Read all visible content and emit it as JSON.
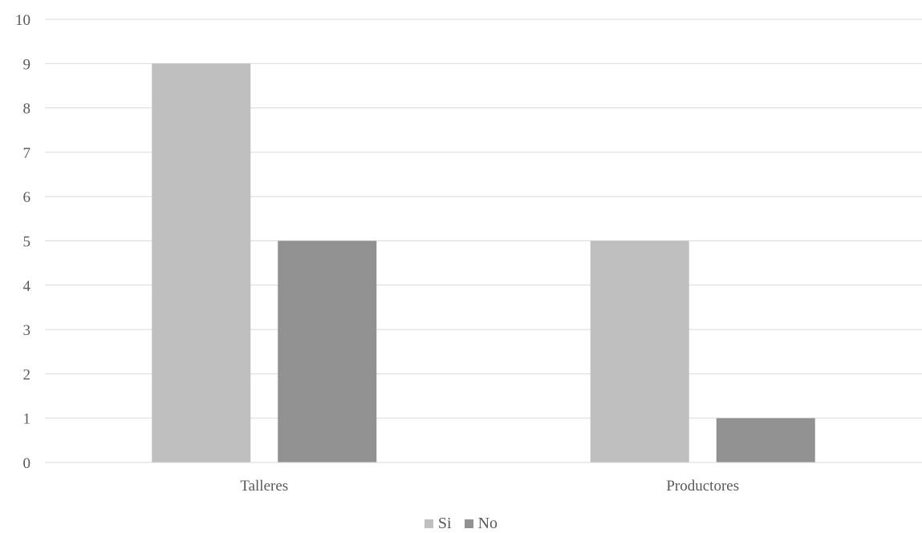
{
  "chart_data": {
    "type": "bar",
    "title": "",
    "xlabel": "",
    "ylabel": "",
    "categories": [
      "Talleres",
      "Productores"
    ],
    "series": [
      {
        "name": "Si",
        "values": [
          9,
          5
        ],
        "color": "#bfbfbf"
      },
      {
        "name": "No",
        "values": [
          5,
          1
        ],
        "color": "#919191"
      }
    ],
    "ylim": [
      0,
      10
    ],
    "yticks": [
      0,
      1,
      2,
      3,
      4,
      5,
      6,
      7,
      8,
      9,
      10
    ],
    "grid": true,
    "gridColor": "#d9d9d9",
    "legend": "bottom-center"
  }
}
